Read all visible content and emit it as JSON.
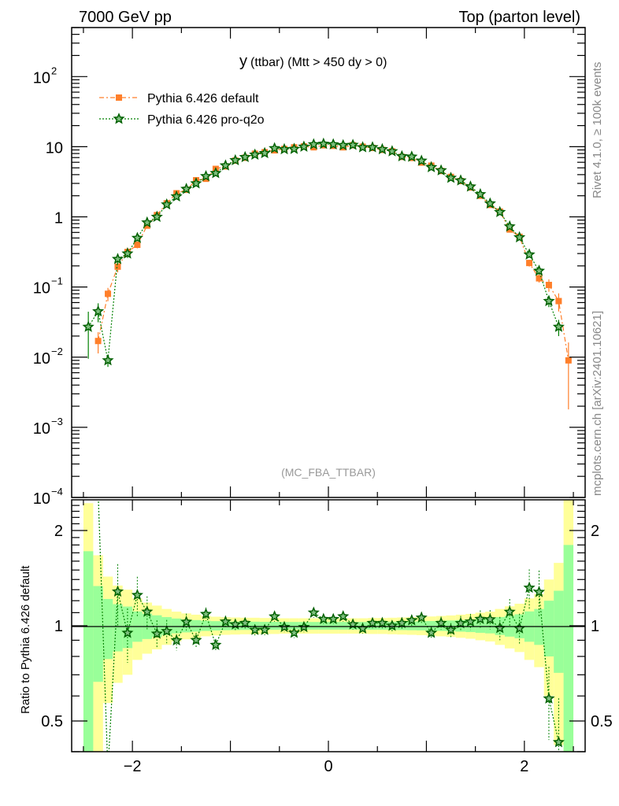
{
  "header": {
    "left": "7000 GeV pp",
    "right": "Top (parton level)"
  },
  "side": {
    "rivet": "Rivet 4.1.0, ≥ 100k events",
    "mcplots": "mcplots.cern.ch [arXiv:2401.10621]"
  },
  "chart_data": {
    "type": "scatter",
    "title": "y (ttbar) (Mtt > 450 dy > 0)",
    "title_main": "y",
    "title_rest": "(ttbar) (Mtt > 450 dy > 0)",
    "analysis_label": "(MC_FBA_TTBAR)",
    "xlim": [
      -2.62,
      2.62
    ],
    "ylim_main": [
      0.0001,
      500
    ],
    "yscale_main": "log",
    "ylim_ratio": [
      0.4,
      2.5
    ],
    "yscale_ratio": "log",
    "ratio_ylabel": "Ratio to Pythia 6.426 default",
    "x_ticks": [
      "-2",
      "0",
      "2"
    ],
    "x_tick_values": [
      -2,
      0,
      2
    ],
    "y_ticks_main": [
      {
        "value": 100,
        "base": "10",
        "exp": "2"
      },
      {
        "value": 10,
        "base": "10",
        "exp": ""
      },
      {
        "value": 1,
        "base": "1",
        "exp": ""
      },
      {
        "value": 0.1,
        "base": "10",
        "exp": "−1"
      },
      {
        "value": 0.01,
        "base": "10",
        "exp": "−2"
      },
      {
        "value": 0.001,
        "base": "10",
        "exp": "−3"
      },
      {
        "value": 0.0001,
        "base": "10",
        "exp": "−4"
      }
    ],
    "y_ticks_ratio": [
      {
        "value": 2,
        "label": "2"
      },
      {
        "value": 1,
        "label": "1"
      },
      {
        "value": 0.5,
        "label": "0.5"
      }
    ],
    "legend_position": "top-left",
    "x": [
      -2.45,
      -2.35,
      -2.25,
      -2.15,
      -2.05,
      -1.95,
      -1.85,
      -1.75,
      -1.65,
      -1.55,
      -1.45,
      -1.35,
      -1.25,
      -1.15,
      -1.05,
      -0.95,
      -0.85,
      -0.75,
      -0.65,
      -0.55,
      -0.45,
      -0.35,
      -0.25,
      -0.15,
      -0.05,
      0.05,
      0.15,
      0.25,
      0.35,
      0.45,
      0.55,
      0.65,
      0.75,
      0.85,
      0.95,
      1.05,
      1.15,
      1.25,
      1.35,
      1.45,
      1.55,
      1.65,
      1.75,
      1.85,
      1.95,
      2.05,
      2.15,
      2.25,
      2.35,
      2.45
    ],
    "series": [
      {
        "name": "Pythia 6.426 default",
        "color": "#ff7f2a",
        "marker": "square",
        "values": [
          null,
          0.017,
          0.08,
          0.195,
          0.316,
          0.4,
          0.75,
          1.06,
          1.56,
          2.17,
          2.43,
          3.33,
          3.49,
          4.83,
          5.24,
          6.34,
          6.96,
          7.94,
          8.35,
          8.88,
          9.29,
          9.79,
          10.1,
          9.82,
          10.48,
          10.29,
          9.81,
          10.5,
          10.0,
          9.61,
          9.02,
          8.6,
          7.16,
          6.92,
          5.94,
          5.37,
          4.51,
          3.71,
          3.24,
          2.62,
          2.0,
          1.48,
          1.19,
          0.66,
          0.52,
          0.22,
          0.133,
          0.107,
          0.063,
          0.009
        ]
      },
      {
        "name": "Pythia 6.426 pro-q2o",
        "color": "#008000",
        "marker": "star",
        "values": [
          0.027,
          0.045,
          0.009,
          0.25,
          0.3,
          0.5,
          0.83,
          1.0,
          1.5,
          1.95,
          2.5,
          3.0,
          3.8,
          4.2,
          5.4,
          6.4,
          7.1,
          7.7,
          8.1,
          9.5,
          9.2,
          9.3,
          10.0,
          10.8,
          11.0,
          10.8,
          10.5,
          10.6,
          9.8,
          9.8,
          9.2,
          8.6,
          7.3,
          7.2,
          6.3,
          5.1,
          4.6,
          3.6,
          3.3,
          2.7,
          2.1,
          1.55,
          1.17,
          0.73,
          0.51,
          0.29,
          0.17,
          0.063,
          0.027,
          null
        ]
      }
    ],
    "ref_rel_error": [
      0.72,
      0.335,
      0.215,
      0.17,
      0.15,
      0.11,
      0.092,
      0.079,
      0.065,
      0.054,
      0.047,
      0.042,
      0.037,
      0.034,
      0.032,
      0.031,
      0.03,
      0.03,
      0.029,
      0.029,
      0.028,
      0.028,
      0.028,
      0.028,
      0.028,
      0.028,
      0.028,
      0.028,
      0.028,
      0.029,
      0.029,
      0.03,
      0.031,
      0.032,
      0.033,
      0.035,
      0.037,
      0.039,
      0.042,
      0.045,
      0.05,
      0.054,
      0.065,
      0.076,
      0.087,
      0.11,
      0.13,
      0.2,
      0.29,
      0.8
    ],
    "band_colors": {
      "inner": "#99ff99",
      "outer": "#ffff99"
    }
  }
}
